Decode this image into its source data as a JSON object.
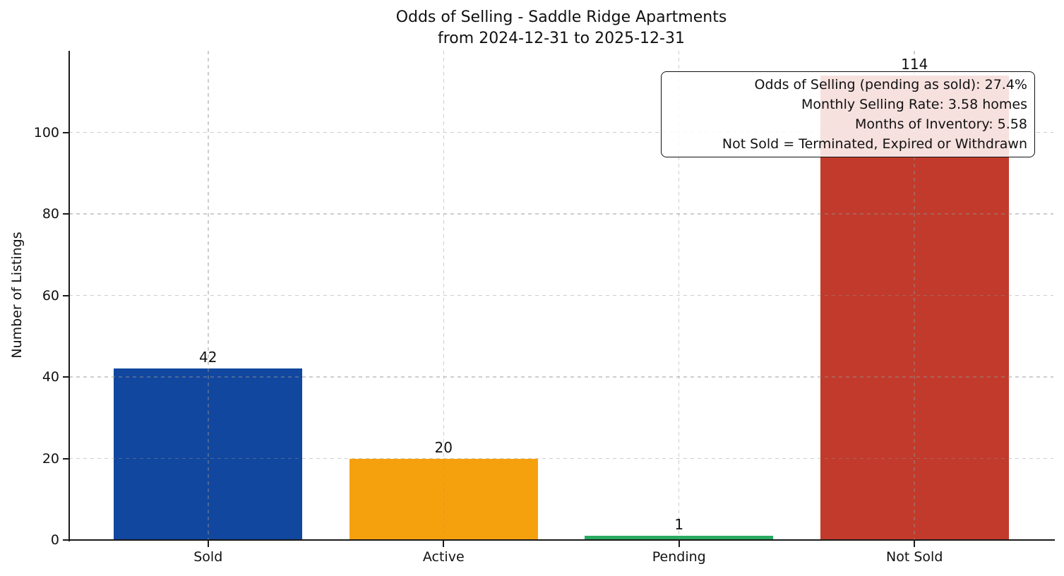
{
  "figure": {
    "title_line1": "Odds of Selling - Saddle Ridge Apartments",
    "title_line2": "from 2024-12-31 to 2025-12-31"
  },
  "chart_data": {
    "type": "bar",
    "title": "Odds of Selling - Saddle Ridge Apartments",
    "subtitle": "from 2024-12-31 to 2025-12-31",
    "categories": [
      "Sold",
      "Active",
      "Pending",
      "Not Sold"
    ],
    "values": [
      42,
      20,
      1,
      114
    ],
    "value_labels": [
      "42",
      "20",
      "1",
      "114"
    ],
    "bar_colors": [
      "#11479e",
      "#f5a10e",
      "#2aab61",
      "#c23a2b"
    ],
    "xlabel": "",
    "ylabel": "Number of Listings",
    "yticks": [
      0,
      20,
      40,
      60,
      80,
      100
    ],
    "ylim": [
      0,
      120
    ],
    "bar_width_fraction": 0.8,
    "grid": {
      "visible": true,
      "style": "dashed",
      "axes": "both"
    },
    "legend": "none",
    "annotation": {
      "position": "top-right",
      "lines": [
        "Odds of Selling (pending as sold): 27.4%",
        "Monthly Selling Rate: 3.58 homes",
        "Months of Inventory: 5.58",
        "Not Sold = Terminated, Expired or Withdrawn"
      ]
    }
  }
}
